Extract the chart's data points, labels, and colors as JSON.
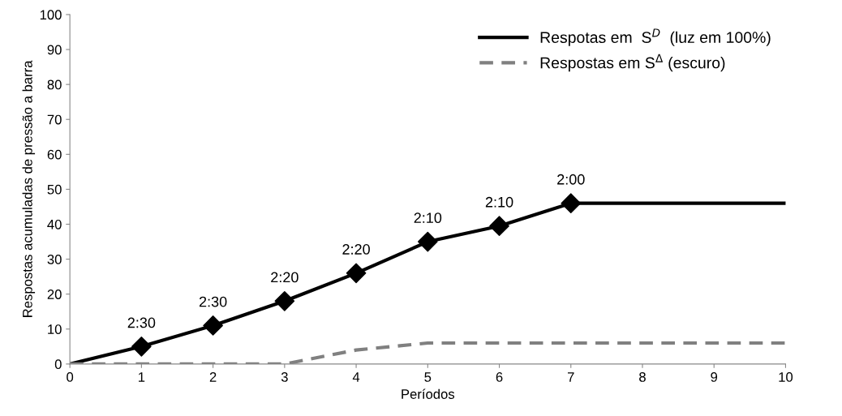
{
  "chart_data": {
    "type": "line",
    "xlabel": "Períodos",
    "ylabel": "Respostas acumuladas de pressão a barra",
    "x": [
      0,
      1,
      2,
      3,
      4,
      5,
      6,
      7,
      8,
      9,
      10
    ],
    "series": [
      {
        "name": "Respotas em  S$^{D}$  (luz em 100%)",
        "color": "#000000",
        "values": [
          0,
          5,
          11,
          18,
          26,
          35,
          39.5,
          46,
          46,
          46,
          46
        ],
        "line_style": "solid",
        "marker": "none"
      },
      {
        "name": "Respostas em S$^{Δ}$ (escuro)",
        "color": "#808080",
        "values": [
          0,
          0,
          0,
          0,
          4,
          6,
          6,
          6,
          6,
          6,
          6
        ],
        "line_style": "dashed",
        "marker": "none"
      },
      {
        "type": "scatter",
        "color": "#000000",
        "x": [
          1,
          2,
          3,
          4,
          5,
          6,
          7
        ],
        "values": [
          5,
          11,
          18,
          26,
          35,
          39.5,
          46
        ],
        "marker": "diamond"
      }
    ],
    "annotations": [
      {
        "text": "2:30",
        "x": 1,
        "y": 5
      },
      {
        "text": "2:30",
        "x": 2,
        "y": 11
      },
      {
        "text": "2:20",
        "x": 3,
        "y": 18
      },
      {
        "text": "2:20",
        "x": 4,
        "y": 26
      },
      {
        "text": "2:10",
        "x": 5,
        "y": 35
      },
      {
        "text": "2:10",
        "x": 6,
        "y": 39.5
      },
      {
        "text": "2:00",
        "x": 7,
        "y": 46
      }
    ],
    "xlim": [
      0,
      10
    ],
    "xticks": [
      0,
      1,
      2,
      3,
      4,
      5,
      6,
      7,
      8,
      9,
      10
    ],
    "ylim": [
      0,
      100
    ],
    "yticks": [
      0,
      10,
      20,
      30,
      40,
      50,
      60,
      70,
      80,
      90,
      100
    ],
    "grid": false,
    "legend": "top right"
  }
}
